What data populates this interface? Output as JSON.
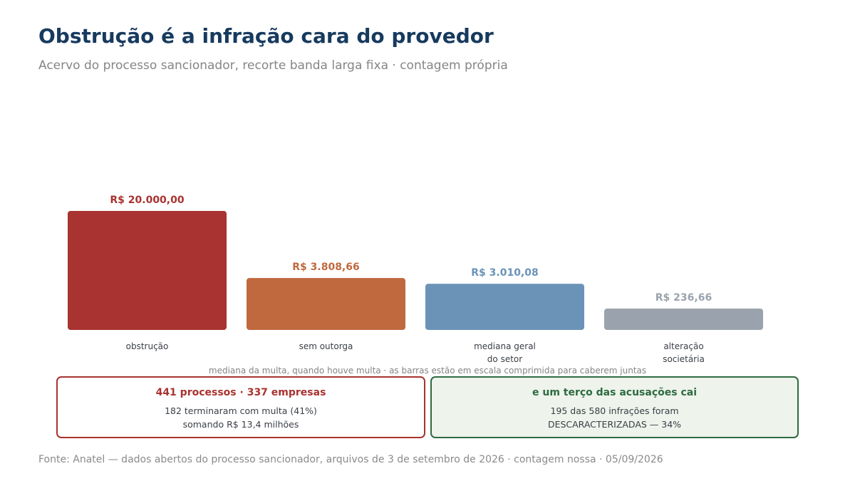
{
  "header": {
    "title": "Obstrução é a infração cara do provedor",
    "subtitle": "Acervo do processo sancionador, recorte banda larga fixa · contagem própria"
  },
  "chart_data": {
    "type": "bar",
    "categories": [
      [
        "obstrução"
      ],
      [
        "sem outorga"
      ],
      [
        "mediana geral",
        "do setor"
      ],
      [
        "alteração",
        "societária"
      ]
    ],
    "values": [
      20000.0,
      3808.66,
      3010.08,
      236.66
    ],
    "value_labels": [
      "R$ 20.000,00",
      "R$ 3.808,66",
      "R$ 3.010,08",
      "R$ 236,66"
    ],
    "colors": [
      "#a83330",
      "#c0693e",
      "#6b93b8",
      "#9aa3ad"
    ],
    "label_colors": [
      "#a83330",
      "#c0693e",
      "#6b93b8",
      "#9aa3ad"
    ],
    "scale": "compressed",
    "grid": false,
    "note": "mediana da multa, quando houve multa · as barras estão em escala comprimida para caberem juntas"
  },
  "callouts": {
    "left": {
      "head": "441 processos · 337 empresas",
      "line1": "182 terminaram com multa (41%)",
      "line2": "somando R$ 13,4 milhões",
      "color": "#a83330"
    },
    "right": {
      "head": "e um terço das acusações cai",
      "line1": "195 das 580 infrações foram",
      "line2": "DESCARACTERIZADAS — 34%",
      "color": "#2e6b40",
      "background": "#eef3ec"
    }
  },
  "footer": {
    "source": "Fonte: Anatel — dados abertos do processo sancionador, arquivos de 3 de setembro de 2026 · contagem nossa · 05/09/2026"
  }
}
